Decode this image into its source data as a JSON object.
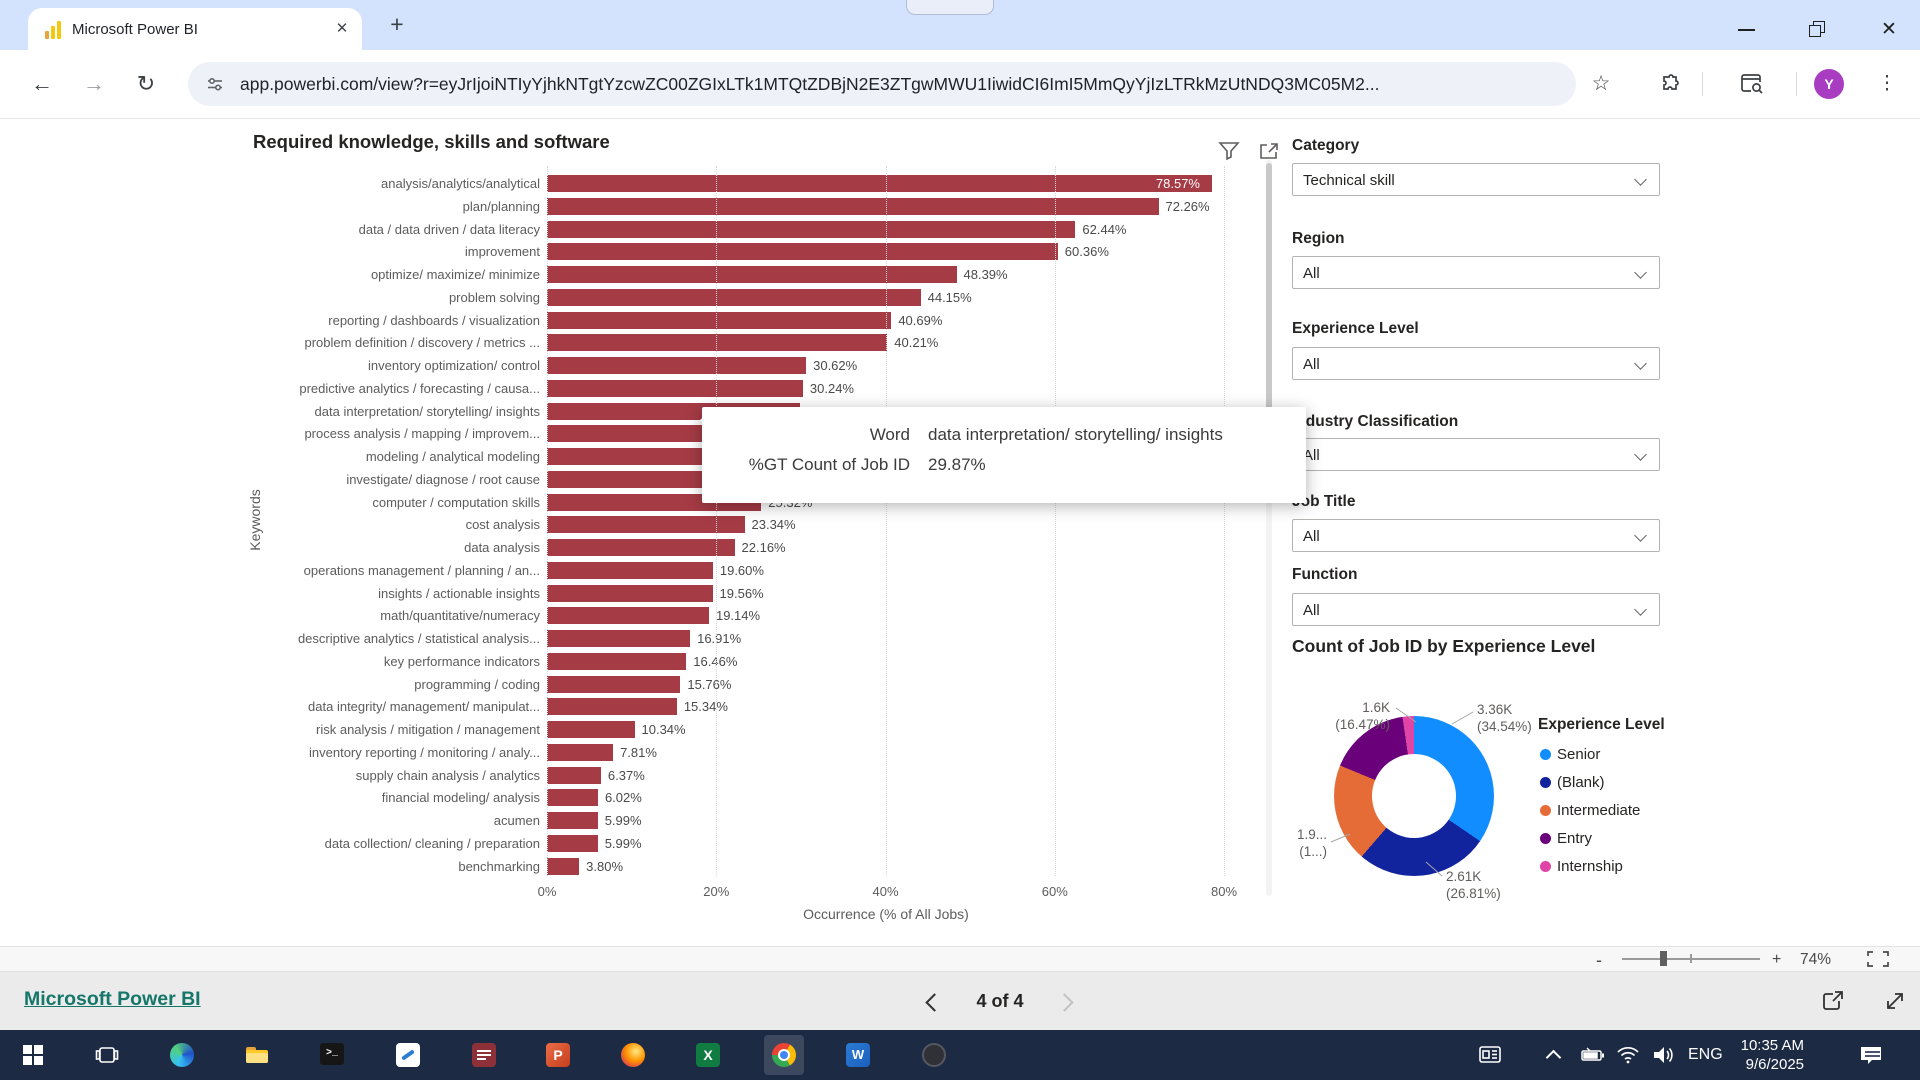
{
  "browser": {
    "tab_title": "Microsoft Power BI",
    "url": "app.powerbi.com/view?r=eyJrIjoiNTIyYjhkNTgtYzcwZC00ZGIxLTk1MTQtZDBjN2E3ZTgwMWU1IiwidCI6ImI5MmQyYjIzLTRkMzUtNDQ3MC05M2...",
    "avatar_initial": "Y"
  },
  "icons": {
    "back": "←",
    "forward": "→",
    "reload": "↻",
    "star": "☆",
    "kebab": "⋮",
    "new_tab": "+",
    "tab_close": "✕",
    "window_close": "✕",
    "zoom_minus": "-",
    "zoom_plus": "+",
    "terminal_glyph": ">_"
  },
  "chart_data": [
    {
      "type": "bar",
      "title": "Required knowledge, skills and software",
      "xlabel": "Occurrence (% of All Jobs)",
      "ylabel": "Keywords",
      "xlim": [
        0,
        80
      ],
      "xticks": [
        "0%",
        "20%",
        "40%",
        "60%",
        "80%"
      ],
      "grid": "vertical-dotted",
      "bar_color": "#A53B45",
      "rows": [
        {
          "label": "analysis/analytics/analytical",
          "value": 78.57,
          "value_label": "78.57%",
          "label_inside": true
        },
        {
          "label": "plan/planning",
          "value": 72.26,
          "value_label": "72.26%"
        },
        {
          "label": "data / data driven / data literacy",
          "value": 62.44,
          "value_label": "62.44%"
        },
        {
          "label": "improvement",
          "value": 60.36,
          "value_label": "60.36%"
        },
        {
          "label": "optimize/ maximize/ minimize",
          "value": 48.39,
          "value_label": "48.39%"
        },
        {
          "label": "problem solving",
          "value": 44.15,
          "value_label": "44.15%"
        },
        {
          "label": "reporting / dashboards / visualization",
          "value": 40.69,
          "value_label": "40.69%"
        },
        {
          "label": "problem definition / discovery / metrics ...",
          "value": 40.21,
          "value_label": "40.21%"
        },
        {
          "label": "inventory optimization/ control",
          "value": 30.62,
          "value_label": "30.62%"
        },
        {
          "label": "predictive analytics / forecasting / causa...",
          "value": 30.24,
          "value_label": "30.24%"
        },
        {
          "label": "data interpretation/ storytelling/ insights",
          "value": 29.87,
          "value_label": null
        },
        {
          "label": "process analysis / mapping / improvem...",
          "value": 29.0,
          "value_label": null
        },
        {
          "label": "modeling / analytical modeling",
          "value": 28.0,
          "value_label": null
        },
        {
          "label": "investigate/ diagnose / root cause",
          "value": 26.5,
          "value_label": null
        },
        {
          "label": "computer / computation skills",
          "value": 25.32,
          "value_label": "25.32%"
        },
        {
          "label": "cost analysis",
          "value": 23.34,
          "value_label": "23.34%"
        },
        {
          "label": "data analysis",
          "value": 22.16,
          "value_label": "22.16%"
        },
        {
          "label": "operations management / planning / an...",
          "value": 19.6,
          "value_label": "19.60%"
        },
        {
          "label": "insights / actionable insights",
          "value": 19.56,
          "value_label": "19.56%"
        },
        {
          "label": "math/quantitative/numeracy",
          "value": 19.14,
          "value_label": "19.14%"
        },
        {
          "label": "descriptive analytics / statistical analysis...",
          "value": 16.91,
          "value_label": "16.91%"
        },
        {
          "label": "key performance indicators",
          "value": 16.46,
          "value_label": "16.46%"
        },
        {
          "label": "programming / coding",
          "value": 15.76,
          "value_label": "15.76%"
        },
        {
          "label": "data integrity/ management/ manipulat...",
          "value": 15.34,
          "value_label": "15.34%"
        },
        {
          "label": "risk analysis / mitigation / management",
          "value": 10.34,
          "value_label": "10.34%"
        },
        {
          "label": "inventory reporting / monitoring / analy...",
          "value": 7.81,
          "value_label": "7.81%"
        },
        {
          "label": "supply chain analysis / analytics",
          "value": 6.37,
          "value_label": "6.37%"
        },
        {
          "label": "financial modeling/ analysis",
          "value": 6.02,
          "value_label": "6.02%"
        },
        {
          "label": "acumen",
          "value": 5.99,
          "value_label": "5.99%"
        },
        {
          "label": "data collection/ cleaning / preparation",
          "value": 5.99,
          "value_label": "5.99%"
        },
        {
          "label": "benchmarking",
          "value": 3.8,
          "value_label": "3.80%"
        }
      ]
    },
    {
      "type": "pie",
      "title": "Count of Job ID by Experience Level",
      "legend_title": "Experience Level",
      "legend_position": "right",
      "slices": [
        {
          "label": "Senior",
          "value": 34.54,
          "count_label": "3.36K",
          "pct_label": "(34.54%)",
          "color": "#118DFF"
        },
        {
          "label": "(Blank)",
          "value": 26.81,
          "count_label": "2.61K",
          "pct_label": "(26.81%)",
          "color": "#12239E"
        },
        {
          "label": "Intermediate",
          "value": 19.87,
          "count_label": "1.9...",
          "pct_label": "(1...)",
          "color": "#E66C37"
        },
        {
          "label": "Entry",
          "value": 16.47,
          "count_label": "1.6K",
          "pct_label": "(16.47%)",
          "color": "#6B007B"
        },
        {
          "label": "Internship",
          "value": 2.31,
          "count_label": "",
          "pct_label": "",
          "color": "#E044A7"
        }
      ],
      "callouts": [
        {
          "line1": "1.6K",
          "line2": "(16.47%)"
        },
        {
          "line1": "3.36K",
          "line2": "(34.54%)"
        },
        {
          "line1": "1.9...",
          "line2": "(1...)"
        },
        {
          "line1": "2.61K",
          "line2": "(26.81%)"
        }
      ]
    }
  ],
  "tooltip": {
    "rows": [
      {
        "label": "Word",
        "value": "data interpretation/ storytelling/ insights"
      },
      {
        "label": "%GT Count of Job ID",
        "value": "29.87%"
      }
    ]
  },
  "filters": {
    "items": [
      {
        "label": "Category",
        "value": "Technical skill"
      },
      {
        "label": "Region",
        "value": "All"
      },
      {
        "label": "Experience Level",
        "value": "All"
      },
      {
        "label": "Industry Classification",
        "value": "All"
      },
      {
        "label": "Job Title",
        "value": "All"
      },
      {
        "label": "Function",
        "value": "All"
      }
    ]
  },
  "zoombar": {
    "zoom_level": "74%"
  },
  "footer": {
    "brand": "Microsoft Power BI",
    "page_label": "4 of 4"
  },
  "taskbar": {
    "language": "ENG",
    "time": "10:35 AM",
    "date": "9/6/2025"
  }
}
